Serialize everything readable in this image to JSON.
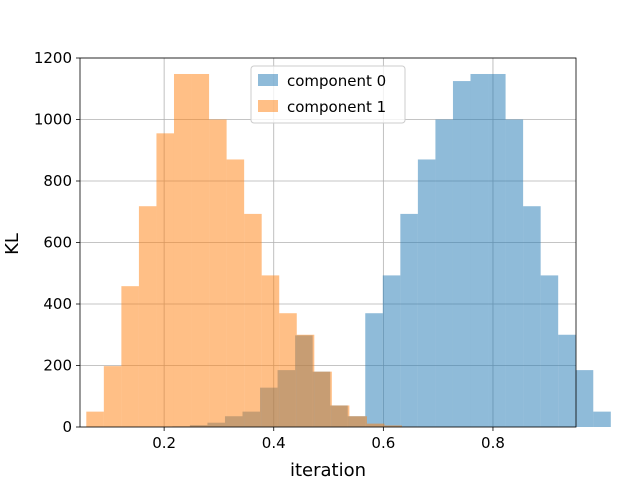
{
  "chart_data": {
    "type": "bar",
    "title": "",
    "xlabel": "iteration",
    "ylabel": "KL",
    "xlim": [
      0.0465,
      0.9515
    ],
    "ylim": [
      0,
      1200
    ],
    "x_ticks": [
      0.2,
      0.4,
      0.6,
      0.8
    ],
    "x_tick_labels": [
      "0.2",
      "0.4",
      "0.6",
      "0.8"
    ],
    "y_ticks": [
      0,
      200,
      400,
      600,
      800,
      1000,
      1200
    ],
    "y_tick_labels": [
      "0",
      "200",
      "400",
      "600",
      "800",
      "1000",
      "1200"
    ],
    "grid": true,
    "legend_position": "top-center",
    "series": [
      {
        "name": "component 0",
        "color": "#1f77b4",
        "opacity": 0.5,
        "bin_start": 0.215,
        "bin_width": 0.032,
        "values": [
          2,
          6,
          14,
          35,
          50,
          128,
          185,
          298,
          180,
          70,
          35,
          370,
          493,
          693,
          870,
          1000,
          1125,
          1148,
          1148,
          1000,
          718,
          493,
          300,
          185,
          50
        ]
      },
      {
        "name": "component 1",
        "color": "#ff7f0e",
        "opacity": 0.5,
        "bin_start": 0.058,
        "bin_width": 0.032,
        "values": [
          50,
          198,
          458,
          718,
          955,
          1148,
          1148,
          1000,
          870,
          693,
          493,
          370,
          300,
          180,
          70,
          35,
          11,
          5,
          1
        ]
      }
    ]
  }
}
